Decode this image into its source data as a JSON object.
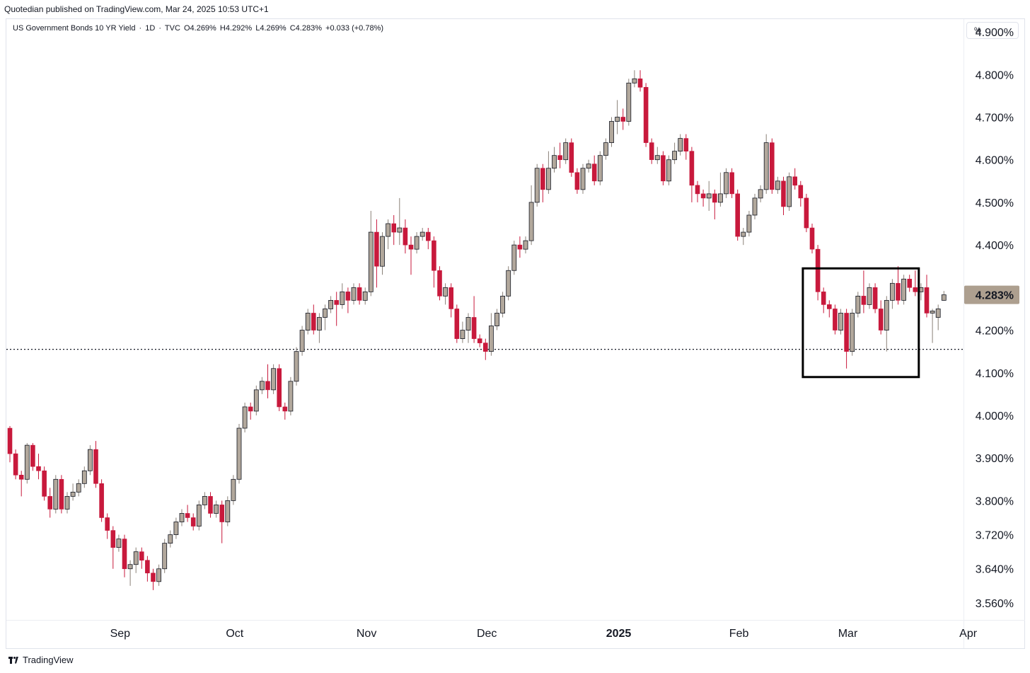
{
  "publisher_line": "Quotedian published on TradingView.com, Mar 24, 2025 10:53 UTC+1",
  "legend": {
    "symbol": "US Government Bonds 10 YR Yield",
    "interval": "1D",
    "source": "TVC",
    "open": "O4.269%",
    "high": "H4.292%",
    "low": "L4.269%",
    "close": "C4.283%",
    "change": "+0.033 (+0.78%)"
  },
  "scale_button": "%",
  "footer_brand": "TradingView",
  "colors": {
    "up_body": "#b2a89c",
    "down_body": "#c8193c",
    "wick_up": "#8a8178",
    "wick_down": "#c8193c",
    "badge": "#ad9f8f",
    "border": "#000000"
  },
  "chart_data": {
    "type": "candlestick",
    "y_unit": "%",
    "ylim": [
      3.52,
      4.93
    ],
    "y_ticks": [
      {
        "value": 3.56,
        "label": "3.560%"
      },
      {
        "value": 3.64,
        "label": "3.640%"
      },
      {
        "value": 3.72,
        "label": "3.720%"
      },
      {
        "value": 3.8,
        "label": "3.800%"
      },
      {
        "value": 3.9,
        "label": "3.900%"
      },
      {
        "value": 4.0,
        "label": "4.000%"
      },
      {
        "value": 4.1,
        "label": "4.100%"
      },
      {
        "value": 4.2,
        "label": "4.200%"
      },
      {
        "value": 4.4,
        "label": "4.400%"
      },
      {
        "value": 4.5,
        "label": "4.500%"
      },
      {
        "value": 4.6,
        "label": "4.600%"
      },
      {
        "value": 4.7,
        "label": "4.700%"
      },
      {
        "value": 4.8,
        "label": "4.800%"
      },
      {
        "value": 4.9,
        "label": "4.900%"
      }
    ],
    "x_ticks": [
      {
        "index": 18,
        "label": "Sep",
        "bold": false
      },
      {
        "index": 38,
        "label": "Oct",
        "bold": false
      },
      {
        "index": 61,
        "label": "Nov",
        "bold": false
      },
      {
        "index": 82,
        "label": "Dec",
        "bold": false
      },
      {
        "index": 105,
        "label": "2025",
        "bold": true
      },
      {
        "index": 126,
        "label": "Feb",
        "bold": false
      },
      {
        "index": 145,
        "label": "Mar",
        "bold": false
      },
      {
        "index": 166,
        "label": "Apr",
        "bold": false
      }
    ],
    "last_price": {
      "value": 4.283,
      "label": "4.283%"
    },
    "support_line": 4.155,
    "highlight_box": {
      "start_index": 139,
      "end_index": 158,
      "low": 4.09,
      "high": 4.345
    },
    "candles": [
      [
        3.97,
        3.91,
        3.975,
        3.89
      ],
      [
        3.91,
        3.86,
        3.92,
        3.85
      ],
      [
        3.86,
        3.85,
        3.87,
        3.81
      ],
      [
        3.85,
        3.93,
        3.935,
        3.84
      ],
      [
        3.93,
        3.88,
        3.935,
        3.87
      ],
      [
        3.88,
        3.87,
        3.91,
        3.85
      ],
      [
        3.87,
        3.81,
        3.88,
        3.8
      ],
      [
        3.81,
        3.78,
        3.83,
        3.76
      ],
      [
        3.78,
        3.85,
        3.86,
        3.77
      ],
      [
        3.85,
        3.78,
        3.86,
        3.77
      ],
      [
        3.78,
        3.81,
        3.82,
        3.77
      ],
      [
        3.81,
        3.82,
        3.84,
        3.8
      ],
      [
        3.82,
        3.84,
        3.85,
        3.81
      ],
      [
        3.84,
        3.87,
        3.88,
        3.83
      ],
      [
        3.87,
        3.92,
        3.93,
        3.86
      ],
      [
        3.92,
        3.84,
        3.94,
        3.83
      ],
      [
        3.84,
        3.76,
        3.85,
        3.75
      ],
      [
        3.76,
        3.73,
        3.77,
        3.71
      ],
      [
        3.73,
        3.69,
        3.74,
        3.64
      ],
      [
        3.69,
        3.71,
        3.72,
        3.68
      ],
      [
        3.71,
        3.64,
        3.72,
        3.62
      ],
      [
        3.64,
        3.65,
        3.66,
        3.6
      ],
      [
        3.65,
        3.68,
        3.69,
        3.63
      ],
      [
        3.68,
        3.66,
        3.69,
        3.64
      ],
      [
        3.66,
        3.63,
        3.67,
        3.61
      ],
      [
        3.63,
        3.61,
        3.64,
        3.59
      ],
      [
        3.61,
        3.64,
        3.65,
        3.6
      ],
      [
        3.64,
        3.7,
        3.71,
        3.63
      ],
      [
        3.7,
        3.72,
        3.73,
        3.69
      ],
      [
        3.72,
        3.75,
        3.76,
        3.71
      ],
      [
        3.75,
        3.77,
        3.78,
        3.74
      ],
      [
        3.77,
        3.76,
        3.79,
        3.75
      ],
      [
        3.76,
        3.74,
        3.77,
        3.73
      ],
      [
        3.74,
        3.79,
        3.8,
        3.73
      ],
      [
        3.79,
        3.81,
        3.82,
        3.78
      ],
      [
        3.81,
        3.77,
        3.82,
        3.76
      ],
      [
        3.77,
        3.79,
        3.8,
        3.76
      ],
      [
        3.79,
        3.75,
        3.8,
        3.7
      ],
      [
        3.75,
        3.8,
        3.81,
        3.74
      ],
      [
        3.8,
        3.85,
        3.86,
        3.79
      ],
      [
        3.85,
        3.97,
        3.98,
        3.84
      ],
      [
        3.97,
        4.02,
        4.03,
        3.96
      ],
      [
        4.02,
        4.01,
        4.03,
        3.99
      ],
      [
        4.01,
        4.06,
        4.07,
        4.0
      ],
      [
        4.06,
        4.08,
        4.09,
        4.05
      ],
      [
        4.08,
        4.06,
        4.12,
        4.04
      ],
      [
        4.06,
        4.11,
        4.12,
        4.05
      ],
      [
        4.11,
        4.02,
        4.12,
        4.01
      ],
      [
        4.02,
        4.01,
        4.03,
        3.99
      ],
      [
        4.01,
        4.08,
        4.09,
        4.0
      ],
      [
        4.08,
        4.15,
        4.16,
        4.07
      ],
      [
        4.15,
        4.2,
        4.21,
        4.14
      ],
      [
        4.2,
        4.24,
        4.25,
        4.19
      ],
      [
        4.24,
        4.2,
        4.26,
        4.19
      ],
      [
        4.2,
        4.23,
        4.24,
        4.17
      ],
      [
        4.23,
        4.25,
        4.26,
        4.2
      ],
      [
        4.25,
        4.27,
        4.28,
        4.24
      ],
      [
        4.27,
        4.26,
        4.29,
        4.21
      ],
      [
        4.26,
        4.29,
        4.31,
        4.25
      ],
      [
        4.29,
        4.27,
        4.3,
        4.24
      ],
      [
        4.27,
        4.3,
        4.31,
        4.26
      ],
      [
        4.3,
        4.27,
        4.31,
        4.26
      ],
      [
        4.27,
        4.29,
        4.3,
        4.26
      ],
      [
        4.29,
        4.43,
        4.48,
        4.28
      ],
      [
        4.43,
        4.35,
        4.46,
        4.3
      ],
      [
        4.35,
        4.42,
        4.43,
        4.33
      ],
      [
        4.42,
        4.45,
        4.46,
        4.39
      ],
      [
        4.45,
        4.43,
        4.47,
        4.4
      ],
      [
        4.43,
        4.44,
        4.51,
        4.4
      ],
      [
        4.44,
        4.4,
        4.46,
        4.38
      ],
      [
        4.4,
        4.39,
        4.42,
        4.33
      ],
      [
        4.39,
        4.42,
        4.43,
        4.38
      ],
      [
        4.42,
        4.43,
        4.44,
        4.41
      ],
      [
        4.43,
        4.41,
        4.44,
        4.39
      ],
      [
        4.41,
        4.34,
        4.42,
        4.3
      ],
      [
        4.34,
        4.28,
        4.35,
        4.27
      ],
      [
        4.28,
        4.3,
        4.31,
        4.26
      ],
      [
        4.3,
        4.25,
        4.31,
        4.23
      ],
      [
        4.25,
        4.18,
        4.26,
        4.17
      ],
      [
        4.18,
        4.2,
        4.22,
        4.17
      ],
      [
        4.2,
        4.23,
        4.24,
        4.17
      ],
      [
        4.23,
        4.18,
        4.28,
        4.17
      ],
      [
        4.18,
        4.17,
        4.19,
        4.16
      ],
      [
        4.17,
        4.15,
        4.18,
        4.13
      ],
      [
        4.15,
        4.21,
        4.24,
        4.14
      ],
      [
        4.21,
        4.24,
        4.25,
        4.2
      ],
      [
        4.24,
        4.28,
        4.29,
        4.23
      ],
      [
        4.28,
        4.34,
        4.35,
        4.27
      ],
      [
        4.34,
        4.4,
        4.41,
        4.33
      ],
      [
        4.4,
        4.39,
        4.42,
        4.37
      ],
      [
        4.39,
        4.41,
        4.42,
        4.38
      ],
      [
        4.41,
        4.5,
        4.54,
        4.4
      ],
      [
        4.5,
        4.58,
        4.59,
        4.49
      ],
      [
        4.58,
        4.53,
        4.59,
        4.5
      ],
      [
        4.53,
        4.58,
        4.62,
        4.52
      ],
      [
        4.58,
        4.61,
        4.63,
        4.57
      ],
      [
        4.61,
        4.6,
        4.64,
        4.58
      ],
      [
        4.6,
        4.64,
        4.65,
        4.59
      ],
      [
        4.64,
        4.57,
        4.65,
        4.56
      ],
      [
        4.57,
        4.53,
        4.58,
        4.52
      ],
      [
        4.53,
        4.58,
        4.59,
        4.52
      ],
      [
        4.58,
        4.59,
        4.6,
        4.57
      ],
      [
        4.59,
        4.55,
        4.61,
        4.54
      ],
      [
        4.55,
        4.61,
        4.62,
        4.54
      ],
      [
        4.61,
        4.64,
        4.65,
        4.6
      ],
      [
        4.64,
        4.69,
        4.7,
        4.63
      ],
      [
        4.69,
        4.7,
        4.74,
        4.66
      ],
      [
        4.7,
        4.69,
        4.72,
        4.67
      ],
      [
        4.69,
        4.78,
        4.79,
        4.68
      ],
      [
        4.78,
        4.79,
        4.81,
        4.77
      ],
      [
        4.79,
        4.77,
        4.81,
        4.76
      ],
      [
        4.77,
        4.64,
        4.78,
        4.63
      ],
      [
        4.64,
        4.6,
        4.65,
        4.59
      ],
      [
        4.6,
        4.61,
        4.63,
        4.59
      ],
      [
        4.61,
        4.55,
        4.62,
        4.54
      ],
      [
        4.55,
        4.6,
        4.61,
        4.54
      ],
      [
        4.6,
        4.62,
        4.64,
        4.59
      ],
      [
        4.62,
        4.65,
        4.66,
        4.61
      ],
      [
        4.65,
        4.62,
        4.66,
        4.6
      ],
      [
        4.62,
        4.54,
        4.63,
        4.5
      ],
      [
        4.54,
        4.52,
        4.55,
        4.5
      ],
      [
        4.52,
        4.51,
        4.53,
        4.49
      ],
      [
        4.51,
        4.52,
        4.55,
        4.48
      ],
      [
        4.52,
        4.5,
        4.53,
        4.46
      ],
      [
        4.5,
        4.52,
        4.57,
        4.49
      ],
      [
        4.52,
        4.57,
        4.58,
        4.51
      ],
      [
        4.57,
        4.52,
        4.58,
        4.51
      ],
      [
        4.52,
        4.42,
        4.53,
        4.41
      ],
      [
        4.42,
        4.43,
        4.44,
        4.4
      ],
      [
        4.43,
        4.47,
        4.48,
        4.42
      ],
      [
        4.47,
        4.51,
        4.52,
        4.46
      ],
      [
        4.51,
        4.53,
        4.54,
        4.5
      ],
      [
        4.53,
        4.64,
        4.66,
        4.52
      ],
      [
        4.64,
        4.53,
        4.65,
        4.52
      ],
      [
        4.53,
        4.55,
        4.56,
        4.52
      ],
      [
        4.55,
        4.49,
        4.56,
        4.47
      ],
      [
        4.49,
        4.56,
        4.57,
        4.48
      ],
      [
        4.56,
        4.54,
        4.58,
        4.53
      ],
      [
        4.54,
        4.51,
        4.55,
        4.49
      ],
      [
        4.51,
        4.44,
        4.52,
        4.43
      ],
      [
        4.44,
        4.39,
        4.45,
        4.38
      ],
      [
        4.39,
        4.29,
        4.4,
        4.27
      ],
      [
        4.29,
        4.26,
        4.3,
        4.24
      ],
      [
        4.26,
        4.25,
        4.27,
        4.23
      ],
      [
        4.25,
        4.2,
        4.26,
        4.19
      ],
      [
        4.2,
        4.24,
        4.25,
        4.19
      ],
      [
        4.24,
        4.15,
        4.25,
        4.11
      ],
      [
        4.15,
        4.24,
        4.25,
        4.14
      ],
      [
        4.24,
        4.28,
        4.29,
        4.23
      ],
      [
        4.28,
        4.26,
        4.34,
        4.24
      ],
      [
        4.26,
        4.3,
        4.31,
        4.25
      ],
      [
        4.3,
        4.25,
        4.31,
        4.24
      ],
      [
        4.25,
        4.2,
        4.27,
        4.19
      ],
      [
        4.2,
        4.27,
        4.28,
        4.15
      ],
      [
        4.27,
        4.31,
        4.32,
        4.25
      ],
      [
        4.31,
        4.27,
        4.35,
        4.26
      ],
      [
        4.27,
        4.32,
        4.33,
        4.26
      ],
      [
        4.32,
        4.3,
        4.33,
        4.29
      ],
      [
        4.3,
        4.29,
        4.34,
        4.28
      ],
      [
        4.29,
        4.3,
        4.31,
        4.27
      ],
      [
        4.3,
        4.24,
        4.33,
        4.23
      ],
      [
        4.24,
        4.245,
        4.25,
        4.17
      ],
      [
        4.23,
        4.25,
        4.26,
        4.2
      ],
      [
        4.27,
        4.283,
        4.292,
        4.269
      ]
    ]
  }
}
